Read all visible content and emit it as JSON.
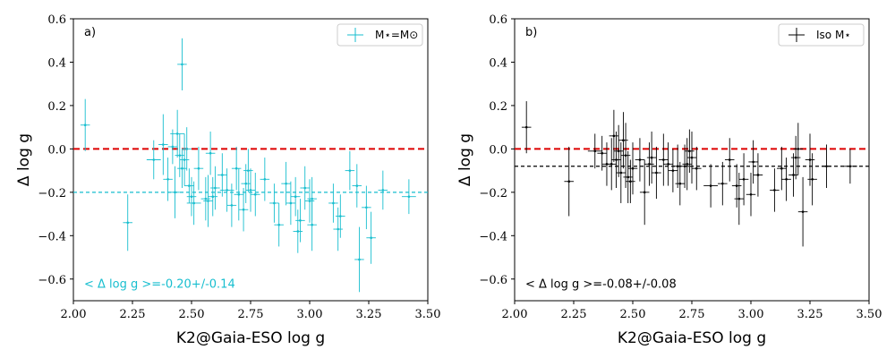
{
  "chart_data": [
    {
      "type": "scatter",
      "panel_label": "a)",
      "xlabel": "K2@Gaia-ESO log g",
      "ylabel": "Δ log g",
      "xlim": [
        2.0,
        3.5
      ],
      "ylim": [
        -0.7,
        0.6
      ],
      "xticks": [
        "2.00",
        "2.25",
        "2.50",
        "2.75",
        "3.00",
        "3.25",
        "3.50"
      ],
      "yticks": [
        "−0.6",
        "−0.4",
        "−0.2",
        "0.0",
        "0.2",
        "0.4",
        "0.6"
      ],
      "legend": "M⋆=M⊙",
      "legend_position": "top-right",
      "color": "#17becf",
      "zero_line_color": "#dd0000",
      "mean_line": -0.2,
      "annotation": "< Δ log g >=-0.20+/-0.14",
      "points": [
        [
          2.05,
          0.11,
          0.12,
          0.02
        ],
        [
          2.23,
          -0.34,
          0.13,
          0.02
        ],
        [
          2.34,
          -0.05,
          0.09,
          0.03
        ],
        [
          2.38,
          0.02,
          0.14,
          0.02
        ],
        [
          2.4,
          -0.14,
          0.1,
          0.02
        ],
        [
          2.42,
          0.01,
          0.08,
          0.02
        ],
        [
          2.43,
          -0.2,
          0.12,
          0.02
        ],
        [
          2.44,
          0.07,
          0.11,
          0.03
        ],
        [
          2.45,
          -0.03,
          0.1,
          0.02
        ],
        [
          2.46,
          -0.09,
          0.09,
          0.02
        ],
        [
          2.46,
          0.39,
          0.12,
          0.02
        ],
        [
          2.47,
          -0.05,
          0.12,
          0.02
        ],
        [
          2.48,
          0.0,
          0.1,
          0.02
        ],
        [
          2.49,
          -0.17,
          0.08,
          0.02
        ],
        [
          2.5,
          -0.22,
          0.09,
          0.02
        ],
        [
          2.51,
          -0.25,
          0.1,
          0.03
        ],
        [
          2.53,
          -0.09,
          0.1,
          0.02
        ],
        [
          2.56,
          -0.23,
          0.1,
          0.02
        ],
        [
          2.57,
          -0.24,
          0.12,
          0.02
        ],
        [
          2.58,
          -0.02,
          0.1,
          0.02
        ],
        [
          2.59,
          -0.22,
          0.09,
          0.02
        ],
        [
          2.6,
          -0.18,
          0.1,
          0.02
        ],
        [
          2.63,
          -0.12,
          0.1,
          0.02
        ],
        [
          2.65,
          -0.19,
          0.1,
          0.03
        ],
        [
          2.67,
          -0.26,
          0.1,
          0.02
        ],
        [
          2.69,
          -0.09,
          0.1,
          0.02
        ],
        [
          2.7,
          -0.21,
          0.12,
          0.02
        ],
        [
          2.72,
          -0.28,
          0.1,
          0.02
        ],
        [
          2.73,
          -0.16,
          0.09,
          0.02
        ],
        [
          2.74,
          -0.1,
          0.1,
          0.02
        ],
        [
          2.75,
          -0.19,
          0.1,
          0.02
        ],
        [
          2.77,
          -0.21,
          0.1,
          0.02
        ],
        [
          2.81,
          -0.14,
          0.1,
          0.02
        ],
        [
          2.85,
          -0.25,
          0.09,
          0.02
        ],
        [
          2.87,
          -0.35,
          0.1,
          0.02
        ],
        [
          2.9,
          -0.16,
          0.1,
          0.02
        ],
        [
          2.92,
          -0.25,
          0.1,
          0.02
        ],
        [
          2.94,
          -0.22,
          0.09,
          0.02
        ],
        [
          2.95,
          -0.38,
          0.1,
          0.02
        ],
        [
          2.96,
          -0.33,
          0.1,
          0.02
        ],
        [
          2.98,
          -0.18,
          0.1,
          0.02
        ],
        [
          3.0,
          -0.24,
          0.1,
          0.02
        ],
        [
          3.01,
          -0.23,
          0.1,
          0.02
        ],
        [
          3.01,
          -0.35,
          0.12,
          0.02
        ],
        [
          3.1,
          -0.25,
          0.09,
          0.02
        ],
        [
          3.12,
          -0.37,
          0.1,
          0.02
        ],
        [
          3.13,
          -0.31,
          0.1,
          0.02
        ],
        [
          3.17,
          -0.1,
          0.09,
          0.02
        ],
        [
          3.2,
          -0.17,
          0.1,
          0.02
        ],
        [
          3.21,
          -0.51,
          0.15,
          0.02
        ],
        [
          3.24,
          -0.27,
          0.1,
          0.02
        ],
        [
          3.26,
          -0.41,
          0.12,
          0.02
        ],
        [
          3.31,
          -0.19,
          0.09,
          0.02
        ],
        [
          3.42,
          -0.22,
          0.08,
          0.03
        ]
      ]
    },
    {
      "type": "scatter",
      "panel_label": "b)",
      "xlabel": "K2@Gaia-ESO log g",
      "ylabel": "Δ log g",
      "xlim": [
        2.0,
        3.5
      ],
      "ylim": [
        -0.7,
        0.6
      ],
      "xticks": [
        "2.00",
        "2.25",
        "2.50",
        "2.75",
        "3.00",
        "3.25",
        "3.50"
      ],
      "yticks": [
        "−0.6",
        "−0.4",
        "−0.2",
        "0.0",
        "0.2",
        "0.4",
        "0.6"
      ],
      "legend": "Iso M⋆",
      "legend_position": "top-right",
      "color": "#000000",
      "zero_line_color": "#dd0000",
      "mean_line": -0.08,
      "annotation": "< Δ log g >=-0.08+/-0.08",
      "points": [
        [
          2.05,
          0.1,
          0.12,
          0.02
        ],
        [
          2.23,
          -0.15,
          0.16,
          0.02
        ],
        [
          2.34,
          -0.01,
          0.08,
          0.03
        ],
        [
          2.37,
          -0.02,
          0.08,
          0.02
        ],
        [
          2.39,
          -0.07,
          0.1,
          0.02
        ],
        [
          2.41,
          -0.07,
          0.12,
          0.02
        ],
        [
          2.42,
          0.06,
          0.12,
          0.02
        ],
        [
          2.43,
          -0.05,
          0.13,
          0.02
        ],
        [
          2.44,
          -0.01,
          0.12,
          0.02
        ],
        [
          2.45,
          -0.11,
          0.14,
          0.02
        ],
        [
          2.46,
          0.04,
          0.13,
          0.02
        ],
        [
          2.47,
          -0.03,
          0.15,
          0.02
        ],
        [
          2.48,
          -0.13,
          0.12,
          0.02
        ],
        [
          2.49,
          -0.15,
          0.1,
          0.02
        ],
        [
          2.5,
          -0.09,
          0.12,
          0.02
        ],
        [
          2.53,
          -0.05,
          0.1,
          0.02
        ],
        [
          2.55,
          -0.2,
          0.15,
          0.02
        ],
        [
          2.57,
          -0.07,
          0.1,
          0.02
        ],
        [
          2.58,
          -0.04,
          0.12,
          0.02
        ],
        [
          2.6,
          -0.11,
          0.12,
          0.02
        ],
        [
          2.63,
          -0.05,
          0.12,
          0.02
        ],
        [
          2.65,
          -0.07,
          0.1,
          0.02
        ],
        [
          2.67,
          -0.1,
          0.1,
          0.02
        ],
        [
          2.69,
          -0.08,
          0.1,
          0.02
        ],
        [
          2.7,
          -0.16,
          0.1,
          0.02
        ],
        [
          2.72,
          -0.08,
          0.1,
          0.02
        ],
        [
          2.73,
          -0.07,
          0.12,
          0.02
        ],
        [
          2.74,
          -0.01,
          0.1,
          0.02
        ],
        [
          2.75,
          -0.04,
          0.12,
          0.02
        ],
        [
          2.77,
          -0.09,
          0.1,
          0.02
        ],
        [
          2.83,
          -0.17,
          0.1,
          0.03
        ],
        [
          2.88,
          -0.16,
          0.1,
          0.02
        ],
        [
          2.91,
          -0.05,
          0.1,
          0.02
        ],
        [
          2.94,
          -0.17,
          0.1,
          0.02
        ],
        [
          2.95,
          -0.23,
          0.12,
          0.02
        ],
        [
          2.97,
          -0.14,
          0.12,
          0.02
        ],
        [
          3.0,
          -0.21,
          0.1,
          0.02
        ],
        [
          3.01,
          -0.06,
          0.1,
          0.02
        ],
        [
          3.03,
          -0.12,
          0.1,
          0.02
        ],
        [
          3.1,
          -0.19,
          0.1,
          0.02
        ],
        [
          3.13,
          -0.09,
          0.1,
          0.02
        ],
        [
          3.15,
          -0.14,
          0.1,
          0.02
        ],
        [
          3.18,
          -0.12,
          0.1,
          0.02
        ],
        [
          3.19,
          -0.04,
          0.1,
          0.02
        ],
        [
          3.2,
          0.0,
          0.12,
          0.02
        ],
        [
          3.22,
          -0.29,
          0.16,
          0.02
        ],
        [
          3.25,
          -0.05,
          0.12,
          0.02
        ],
        [
          3.26,
          -0.14,
          0.12,
          0.02
        ],
        [
          3.32,
          -0.08,
          0.1,
          0.02
        ],
        [
          3.42,
          -0.08,
          0.08,
          0.03
        ]
      ]
    }
  ]
}
